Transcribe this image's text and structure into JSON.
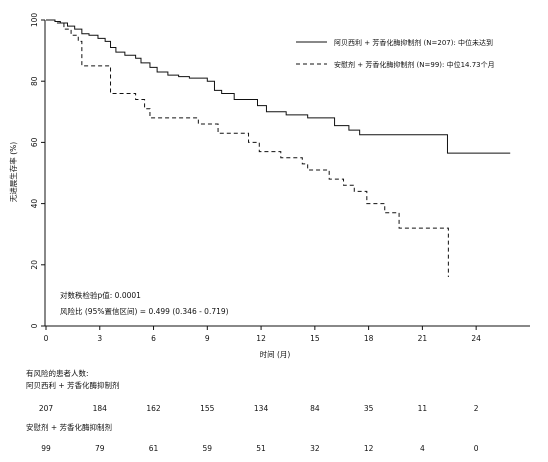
{
  "chart_data": {
    "type": "line",
    "title": "",
    "xlabel": "时间 (月)",
    "ylabel": "无进展生存率 (%)",
    "xlim": [
      0,
      26
    ],
    "ylim": [
      0,
      100
    ],
    "xticks": [
      "0",
      "3",
      "6",
      "9",
      "12",
      "15",
      "18",
      "21",
      "24"
    ],
    "yticks": [
      "0",
      "20",
      "40",
      "60",
      "80",
      "100"
    ],
    "grid": false,
    "legend_position": "top-right",
    "series": [
      {
        "name": "阿贝西利 + 芳香化酶抑制剂 (N=207): 中位未达到",
        "style": "solid",
        "x": [
          0,
          0.5,
          0.8,
          1.2,
          1.6,
          2.0,
          2.4,
          2.9,
          3.3,
          3.6,
          3.9,
          4.4,
          5.0,
          5.3,
          5.8,
          6.2,
          6.8,
          7.4,
          8.0,
          9.0,
          9.4,
          9.8,
          10.5,
          11.8,
          12.3,
          13.4,
          14.6,
          16.1,
          16.9,
          17.5,
          21.9,
          22.4,
          25.9
        ],
        "y": [
          100,
          99.5,
          99,
          98,
          97,
          95.5,
          95,
          94,
          93,
          91,
          89.5,
          88.5,
          87.5,
          86,
          84.5,
          83,
          82,
          81.5,
          81,
          80,
          77,
          76,
          74,
          72,
          70,
          69,
          68,
          65.5,
          64,
          62.5,
          62.5,
          56.5,
          56.5
        ]
      },
      {
        "name": "安慰剂 + 芳香化酶抑制剂 (N=99): 中位14.73个月",
        "style": "dashed",
        "x": [
          0,
          0.5,
          1.0,
          1.4,
          1.8,
          2.0,
          3.6,
          3.9,
          5.0,
          5.5,
          5.8,
          8.5,
          9.6,
          11.3,
          11.9,
          13.1,
          14.3,
          14.6,
          15.8,
          16.6,
          17.2,
          17.9,
          18.9,
          19.7,
          22.4,
          22.45
        ],
        "y": [
          100,
          99,
          97,
          95,
          93,
          85,
          76,
          76,
          74,
          71,
          68,
          66,
          63,
          60,
          57,
          55,
          53,
          51,
          48,
          46,
          44,
          40,
          37,
          32,
          32,
          16
        ]
      }
    ],
    "annotations": {
      "logrank": "对数秩检验p值: 0.0001",
      "hazard_ratio": "风险比 (95%置信区间) = 0.499 (0.346 - 0.719)"
    },
    "risk_table": {
      "title": "有风险的患者人数:",
      "times": [
        0,
        3,
        6,
        9,
        12,
        15,
        18,
        21,
        24
      ],
      "groups": [
        {
          "label": "阿贝西利 + 芳香化酶抑制剂",
          "counts": [
            "207",
            "184",
            "162",
            "155",
            "134",
            "84",
            "35",
            "11",
            "2"
          ]
        },
        {
          "label": "安慰剂 + 芳香化酶抑制剂",
          "counts": [
            "99",
            "79",
            "61",
            "59",
            "51",
            "32",
            "12",
            "4",
            "0"
          ]
        }
      ]
    }
  }
}
